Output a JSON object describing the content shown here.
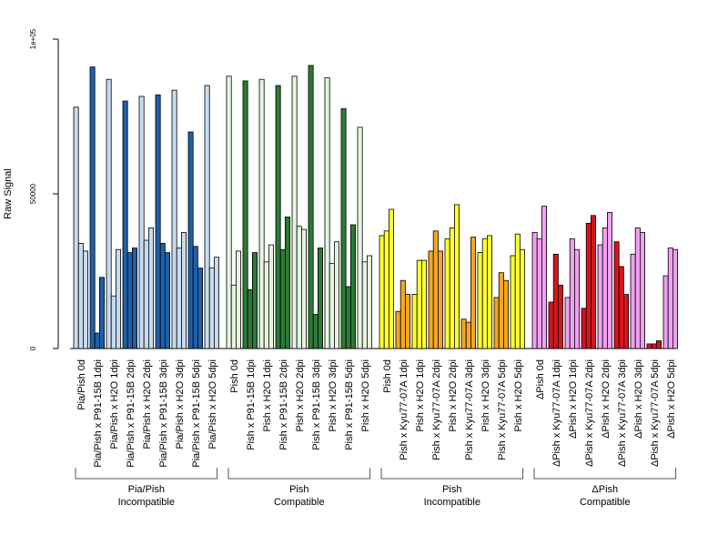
{
  "chart_data": {
    "type": "bar",
    "ylabel": "Raw Signal",
    "ylim": [
      0,
      100000
    ],
    "y_ticks": [
      {
        "value": 0,
        "label": "0"
      },
      {
        "value": 50000,
        "label": "50000"
      },
      {
        "value": 100000,
        "label": "1e+05"
      }
    ],
    "bars_per_sample": 3,
    "groups": [
      {
        "name_line1": "Pia/Pish",
        "name_line2": "Incompatible",
        "fill_color": "#c6dbef",
        "strong_color": "#1f5fa8",
        "samples": [
          {
            "label": "Pia/Pish 0d",
            "values": [
              78000,
              34000,
              31500
            ],
            "treated": false
          },
          {
            "label": "Pia/Pish x P91-15B 1dpi",
            "values": [
              91000,
              5000,
              23000
            ],
            "treated": true
          },
          {
            "label": "Pia/Pish x H2O 1dpi",
            "values": [
              87000,
              17000,
              32000
            ],
            "treated": false
          },
          {
            "label": "Pia/Pish x P91-15B 2dpi",
            "values": [
              80000,
              31000,
              32500
            ],
            "treated": true
          },
          {
            "label": "Pia/Pish x H2O 2dpi",
            "values": [
              81500,
              35000,
              39000
            ],
            "treated": false
          },
          {
            "label": "Pia/Pish x P91-15B 3dpi",
            "values": [
              82000,
              34000,
              31000
            ],
            "treated": true
          },
          {
            "label": "Pia/Pish x H2O 3dpi",
            "values": [
              83500,
              32500,
              37500
            ],
            "treated": false
          },
          {
            "label": "Pia/Pish x P91-15B 5dpi",
            "values": [
              70000,
              33000,
              26000
            ],
            "treated": true
          },
          {
            "label": "Pia/Pish x H2O 5dpi",
            "values": [
              85000,
              26000,
              29500
            ],
            "treated": false
          }
        ]
      },
      {
        "name_line1": "Pish",
        "name_line2": "Compatible",
        "fill_color": "#e5f5e0",
        "strong_color": "#2b7a34",
        "samples": [
          {
            "label": "Pish 0d",
            "values": [
              88000,
              20500,
              31500
            ],
            "treated": false
          },
          {
            "label": "Pish x P91-15B 1dpi",
            "values": [
              86500,
              19000,
              31000
            ],
            "treated": true
          },
          {
            "label": "Pish x H2O 1dpi",
            "values": [
              87000,
              28000,
              33500
            ],
            "treated": false
          },
          {
            "label": "Pish x P91-15B 2dpi",
            "values": [
              85000,
              32000,
              42500
            ],
            "treated": true
          },
          {
            "label": "Pish x H2O 2dpi",
            "values": [
              88000,
              39500,
              38500
            ],
            "treated": false
          },
          {
            "label": "Pish x P91-15B 3dpi",
            "values": [
              91500,
              11000,
              32500
            ],
            "treated": true
          },
          {
            "label": "Pish x H2O 3dpi",
            "values": [
              87500,
              27500,
              34500
            ],
            "treated": false
          },
          {
            "label": "Pish x P91-15B 5dpi",
            "values": [
              77500,
              20000,
              40000
            ],
            "treated": true
          },
          {
            "label": "Pish x H2O 5dpi",
            "values": [
              71500,
              28000,
              30000
            ],
            "treated": false
          }
        ]
      },
      {
        "name_line1": "Pish",
        "name_line2": "Incompatible",
        "fill_color": "#ffff33",
        "strong_color": "#f5a623",
        "samples": [
          {
            "label": "Pish 0d",
            "values": [
              36500,
              38000,
              45000
            ],
            "treated": false
          },
          {
            "label": "Pish x Kyu77-07A 1dpi",
            "values": [
              12000,
              22000,
              17500
            ],
            "treated": true
          },
          {
            "label": "Pish x H2O 1dpi",
            "values": [
              17500,
              28500,
              28500
            ],
            "treated": false
          },
          {
            "label": "Pish x Kyu77-07A 2dpi",
            "values": [
              31500,
              38000,
              31500
            ],
            "treated": true
          },
          {
            "label": "Pish x H2O 2dpi",
            "values": [
              35500,
              39000,
              46500
            ],
            "treated": false
          },
          {
            "label": "Pish x Kyu77-07A 3dpi",
            "values": [
              9500,
              8500,
              36000
            ],
            "treated": true
          },
          {
            "label": "Pish x H2O 3dpi",
            "values": [
              31000,
              35500,
              36500
            ],
            "treated": false
          },
          {
            "label": "Pish x Kyu77-07A 5dpi",
            "values": [
              16500,
              24500,
              22000
            ],
            "treated": true
          },
          {
            "label": "Pish x H2O 5dpi",
            "values": [
              30000,
              37000,
              32000
            ],
            "treated": false
          }
        ]
      },
      {
        "name_line1": "ΔPish",
        "name_line2": "Compatible",
        "fill_color": "#f0a0f0",
        "strong_color": "#d7141e",
        "samples": [
          {
            "label": "ΔPish 0d",
            "values": [
              37500,
              35500,
              46000
            ],
            "treated": false
          },
          {
            "label": "ΔPish x Kyu77-07A 1dpi",
            "values": [
              15000,
              30500,
              20500
            ],
            "treated": true
          },
          {
            "label": "ΔPish x H2O 1dpi",
            "values": [
              16500,
              35500,
              32000
            ],
            "treated": false
          },
          {
            "label": "ΔPish x Kyu77-07A 2dpi",
            "values": [
              13000,
              40500,
              43000
            ],
            "treated": true
          },
          {
            "label": "ΔPish x H2O 2dpi",
            "values": [
              33500,
              39000,
              44000
            ],
            "treated": false
          },
          {
            "label": "ΔPish x Kyu77-07A 3dpi",
            "values": [
              34500,
              26500,
              17500
            ],
            "treated": true
          },
          {
            "label": "ΔPish x H2O 3dpi",
            "values": [
              30500,
              39000,
              37500
            ],
            "treated": false
          },
          {
            "label": "ΔPish x Kyu77-07A 5dpi",
            "values": [
              1500,
              1500,
              2500
            ],
            "treated": true
          },
          {
            "label": "ΔPish x H2O 5dpi",
            "values": [
              23500,
              32500,
              32000
            ],
            "treated": false
          }
        ]
      }
    ]
  }
}
